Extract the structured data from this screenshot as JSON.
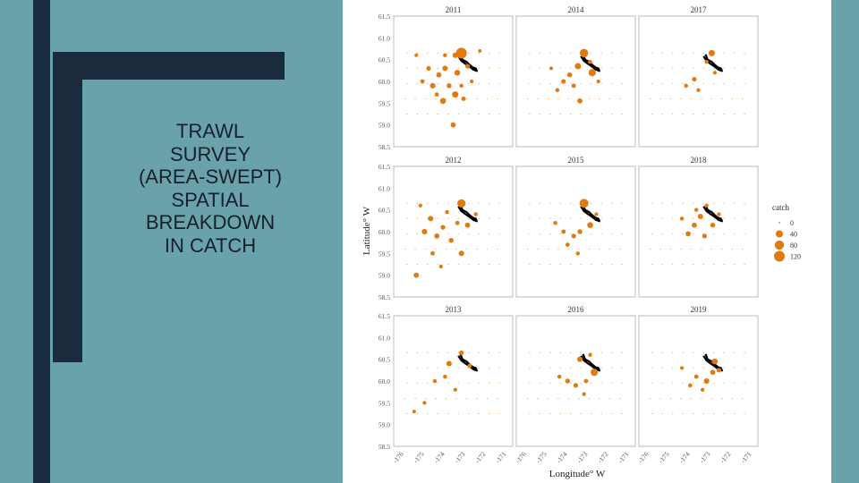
{
  "slide": {
    "title": "TRAWL\nSURVEY\n(AREA-SWEPT)\nSPATIAL\nBREAKDOWN\nIN CATCH"
  },
  "colors": {
    "background": "#6aa2ab",
    "accent_bars": "#1b2b3e",
    "points": "#e07b10",
    "panel_border": "#bbbbbb",
    "coastline": "#000000"
  },
  "chart_data": {
    "type": "scatter",
    "layout": "faceted 3x3",
    "xlabel": "Longitude° W",
    "ylabel": "Latitude° W",
    "xlim": [
      -176.3,
      -170.5
    ],
    "ylim": [
      58.5,
      61.5
    ],
    "xticks": [
      -176,
      -175,
      -174,
      -173,
      -172,
      -171
    ],
    "yticks": [
      58.5,
      59.0,
      59.5,
      60.0,
      60.5,
      61.0,
      61.5
    ],
    "grid": false,
    "legend": {
      "title": "catch",
      "position": "right",
      "entries": [
        {
          "label": "0",
          "value": 0
        },
        {
          "label": "40",
          "value": 40
        },
        {
          "label": "80",
          "value": 80
        },
        {
          "label": "120",
          "value": 120
        }
      ]
    },
    "panels": [
      {
        "title": "2011",
        "points": [
          [
            -173.0,
            60.65,
            120
          ],
          [
            -173.3,
            60.6,
            15
          ],
          [
            -172.7,
            60.35,
            8
          ],
          [
            -173.2,
            60.2,
            20
          ],
          [
            -173.8,
            60.3,
            14
          ],
          [
            -174.1,
            60.15,
            12
          ],
          [
            -174.4,
            59.9,
            16
          ],
          [
            -173.6,
            59.9,
            10
          ],
          [
            -173.3,
            59.7,
            25
          ],
          [
            -173.9,
            59.55,
            22
          ],
          [
            -174.6,
            60.3,
            8
          ],
          [
            -174.9,
            60.0,
            6
          ],
          [
            -173.4,
            59.0,
            12
          ],
          [
            -172.9,
            59.6,
            6
          ],
          [
            -173.8,
            60.6,
            4
          ],
          [
            -172.5,
            60.0,
            3
          ],
          [
            -174.2,
            59.7,
            5
          ],
          [
            -175.2,
            60.6,
            2
          ],
          [
            -172.1,
            60.7,
            2
          ],
          [
            -173.0,
            59.9,
            4
          ]
        ]
      },
      {
        "title": "2014",
        "points": [
          [
            -173.0,
            60.65,
            62
          ],
          [
            -172.6,
            60.2,
            40
          ],
          [
            -173.3,
            60.35,
            24
          ],
          [
            -173.7,
            60.15,
            10
          ],
          [
            -174.0,
            60.0,
            8
          ],
          [
            -173.5,
            59.9,
            6
          ],
          [
            -173.2,
            59.55,
            12
          ],
          [
            -172.7,
            60.45,
            4
          ],
          [
            -174.3,
            59.8,
            4
          ],
          [
            -172.3,
            60.0,
            3
          ],
          [
            -174.6,
            60.3,
            2
          ]
        ]
      },
      {
        "title": "2017",
        "points": [
          [
            -172.75,
            60.65,
            25
          ],
          [
            -173.0,
            60.45,
            4
          ],
          [
            -173.6,
            60.05,
            8
          ],
          [
            -174.0,
            59.9,
            4
          ],
          [
            -173.4,
            59.8,
            3
          ],
          [
            -172.6,
            60.2,
            3
          ]
        ]
      },
      {
        "title": "2012",
        "points": [
          [
            -173.0,
            60.65,
            60
          ],
          [
            -174.5,
            60.3,
            14
          ],
          [
            -174.8,
            60.0,
            16
          ],
          [
            -174.2,
            59.9,
            12
          ],
          [
            -173.5,
            59.8,
            10
          ],
          [
            -173.0,
            59.5,
            15
          ],
          [
            -172.7,
            60.15,
            12
          ],
          [
            -175.2,
            59.0,
            14
          ],
          [
            -173.9,
            60.1,
            8
          ],
          [
            -173.2,
            60.2,
            6
          ],
          [
            -174.4,
            59.5,
            6
          ],
          [
            -172.3,
            60.4,
            4
          ],
          [
            -173.7,
            60.45,
            4
          ],
          [
            -175.0,
            60.6,
            3
          ],
          [
            -174.0,
            59.2,
            3
          ]
        ]
      },
      {
        "title": "2015",
        "points": [
          [
            -173.0,
            60.65,
            75
          ],
          [
            -172.7,
            60.15,
            20
          ],
          [
            -173.2,
            60.0,
            10
          ],
          [
            -173.5,
            59.9,
            8
          ],
          [
            -174.0,
            60.0,
            6
          ],
          [
            -173.8,
            59.7,
            5
          ],
          [
            -173.3,
            59.5,
            4
          ],
          [
            -174.4,
            60.2,
            4
          ],
          [
            -172.4,
            60.4,
            3
          ]
        ]
      },
      {
        "title": "2018",
        "points": [
          [
            -173.3,
            60.35,
            14
          ],
          [
            -173.6,
            60.15,
            12
          ],
          [
            -173.9,
            59.95,
            12
          ],
          [
            -173.1,
            59.9,
            8
          ],
          [
            -172.7,
            60.15,
            10
          ],
          [
            -174.2,
            60.3,
            4
          ],
          [
            -173.5,
            60.5,
            4
          ],
          [
            -173.0,
            60.6,
            3
          ],
          [
            -172.4,
            60.4,
            3
          ]
        ]
      },
      {
        "title": "2013",
        "points": [
          [
            -173.0,
            60.65,
            8
          ],
          [
            -173.6,
            60.4,
            14
          ],
          [
            -172.6,
            60.35,
            6
          ],
          [
            -173.8,
            60.1,
            4
          ],
          [
            -174.3,
            60.0,
            4
          ],
          [
            -173.3,
            59.8,
            3
          ],
          [
            -174.8,
            59.5,
            3
          ],
          [
            -175.3,
            59.3,
            2
          ]
        ]
      },
      {
        "title": "2016",
        "points": [
          [
            -172.5,
            60.2,
            40
          ],
          [
            -173.2,
            60.5,
            16
          ],
          [
            -173.8,
            60.0,
            10
          ],
          [
            -173.4,
            59.9,
            8
          ],
          [
            -172.9,
            60.0,
            6
          ],
          [
            -174.2,
            60.1,
            4
          ],
          [
            -173.0,
            59.7,
            3
          ],
          [
            -172.7,
            60.6,
            3
          ]
        ]
      },
      {
        "title": "2019",
        "points": [
          [
            -172.6,
            60.45,
            20
          ],
          [
            -173.0,
            60.0,
            16
          ],
          [
            -172.7,
            60.2,
            12
          ],
          [
            -172.4,
            60.25,
            8
          ],
          [
            -173.5,
            60.1,
            6
          ],
          [
            -173.8,
            59.9,
            4
          ],
          [
            -173.2,
            59.8,
            3
          ],
          [
            -174.2,
            60.3,
            3
          ]
        ]
      }
    ]
  }
}
